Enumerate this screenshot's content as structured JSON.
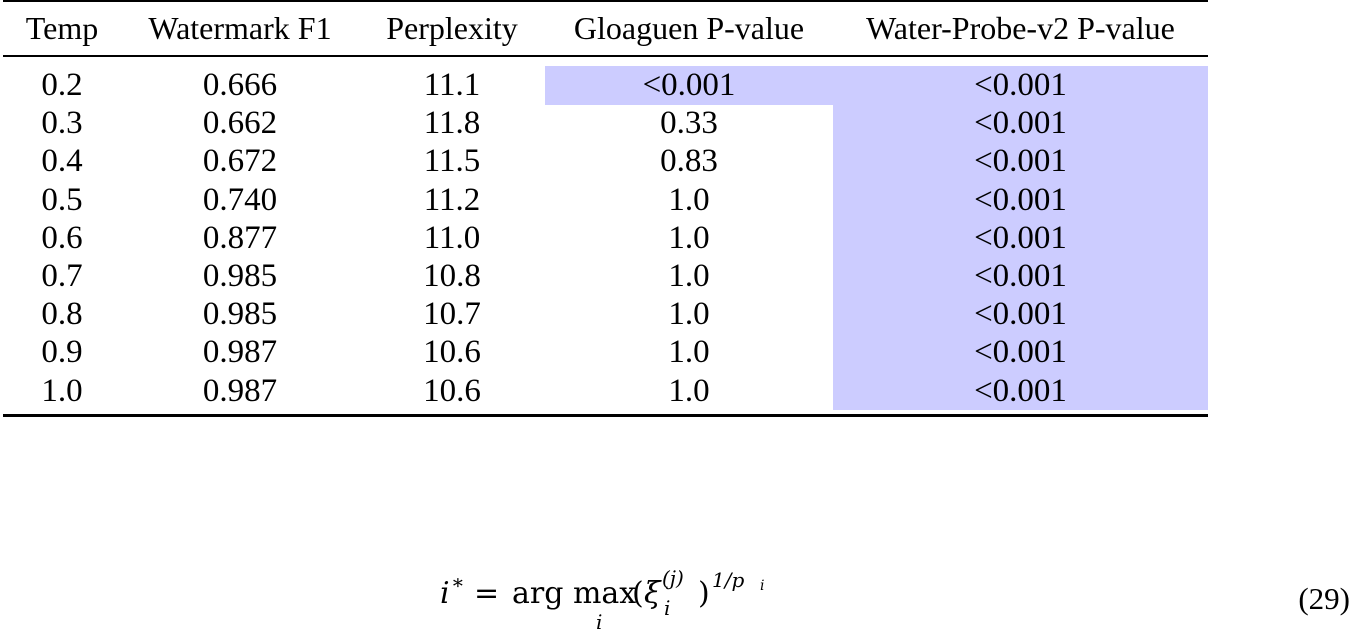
{
  "table": {
    "columns": [
      "Temp",
      "Watermark F1",
      "Perplexity",
      "Gloaguen P-value",
      "Water-Probe-v2 P-value"
    ],
    "rows": [
      [
        "0.2",
        "0.666",
        "11.1",
        "<0.001",
        "<0.001"
      ],
      [
        "0.3",
        "0.662",
        "11.8",
        "0.33",
        "<0.001"
      ],
      [
        "0.4",
        "0.672",
        "11.5",
        "0.83",
        "<0.001"
      ],
      [
        "0.5",
        "0.740",
        "11.2",
        "1.0",
        "<0.001"
      ],
      [
        "0.6",
        "0.877",
        "11.0",
        "1.0",
        "<0.001"
      ],
      [
        "0.7",
        "0.985",
        "10.8",
        "1.0",
        "<0.001"
      ],
      [
        "0.8",
        "0.985",
        "10.7",
        "1.0",
        "<0.001"
      ],
      [
        "0.9",
        "0.987",
        "10.6",
        "1.0",
        "<0.001"
      ],
      [
        "1.0",
        "0.987",
        "10.6",
        "1.0",
        "<0.001"
      ]
    ],
    "highlight_color": "#ccccff",
    "highlighted_cells": [
      {
        "row": 0,
        "col": 3
      },
      {
        "row": 0,
        "col": 4
      },
      {
        "row": 1,
        "col": 4
      },
      {
        "row": 2,
        "col": 4
      },
      {
        "row": 3,
        "col": 4
      },
      {
        "row": 4,
        "col": 4
      },
      {
        "row": 5,
        "col": 4
      },
      {
        "row": 6,
        "col": 4
      },
      {
        "row": 7,
        "col": 4
      },
      {
        "row": 8,
        "col": 4
      }
    ]
  },
  "equation": {
    "lhs": "i",
    "lhs_sup": "∗",
    "equals": "=",
    "op": "arg max",
    "op_sub": "i",
    "open": "(",
    "var": "ξ",
    "var_sup": "(j)",
    "var_sub": "i",
    "close": ")",
    "exp": "1/p",
    "exp_sub": "i",
    "number": "(29)"
  }
}
